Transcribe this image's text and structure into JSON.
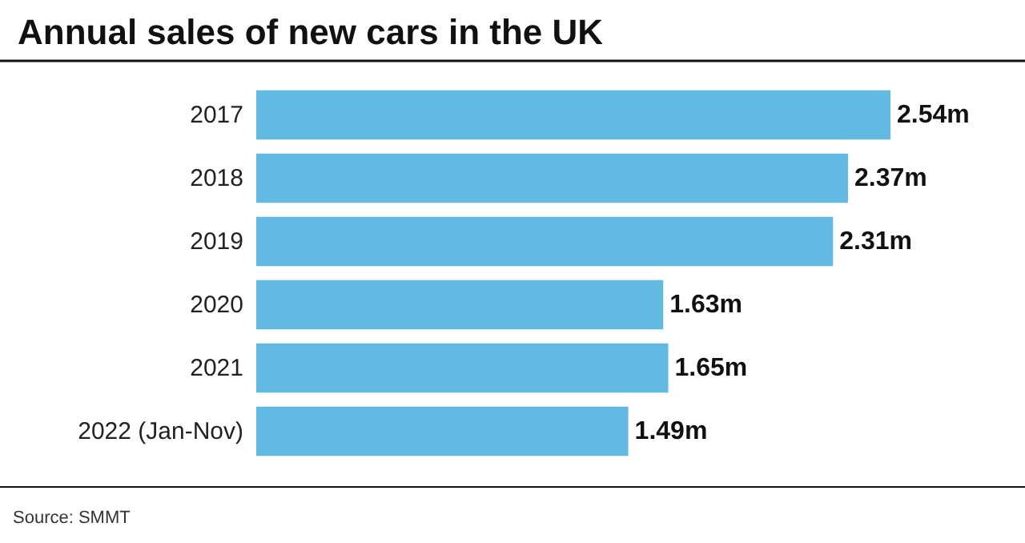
{
  "chart_data": {
    "type": "bar",
    "orientation": "horizontal",
    "title": "Annual sales of new cars in the UK",
    "categories": [
      "2017",
      "2018",
      "2019",
      "2020",
      "2021",
      "2022 (Jan-Nov)"
    ],
    "values": [
      2.54,
      2.37,
      2.31,
      1.63,
      1.65,
      1.49
    ],
    "value_labels": [
      "2.54m",
      "2.37m",
      "2.31m",
      "1.63m",
      "1.65m",
      "1.49m"
    ],
    "color": "#62b9e2",
    "annotations": [
      "Source: SMMT"
    ]
  }
}
